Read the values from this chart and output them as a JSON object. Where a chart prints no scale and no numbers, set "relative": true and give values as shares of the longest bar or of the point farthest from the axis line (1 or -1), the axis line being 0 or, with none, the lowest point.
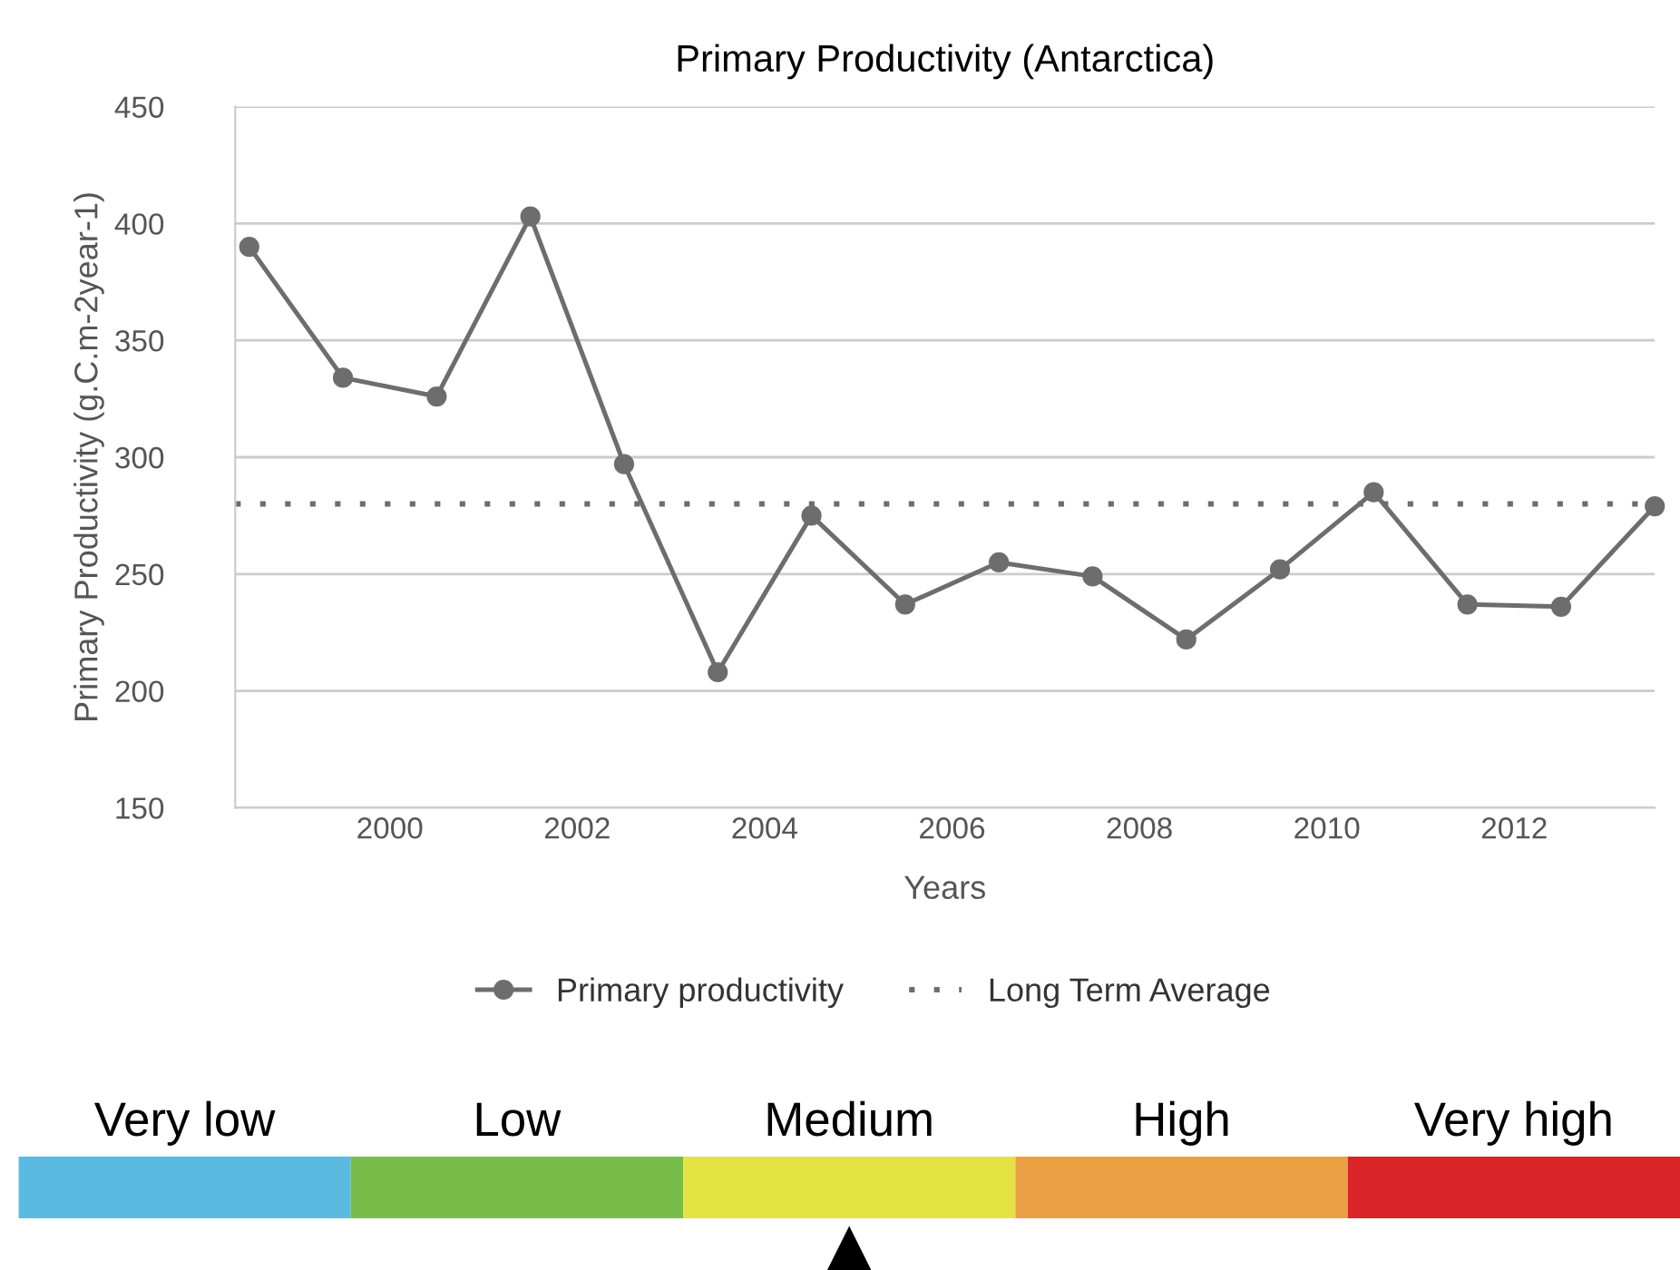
{
  "chart_data": [
    {
      "type": "line",
      "title": "Primary Productivity (Antarctica)",
      "xlabel": "Years",
      "ylabel": "Primary Productivity (g.C.m-2year-1)",
      "x": [
        1998.5,
        1999.5,
        2000.5,
        2001.5,
        2002.5,
        2003.5,
        2004.5,
        2005.5,
        2006.5,
        2007.5,
        2008.5,
        2009.5,
        2010.5,
        2011.5,
        2012.5,
        2013.5
      ],
      "series": [
        {
          "name": "Primary productivity",
          "color": "#6d6d6d",
          "values": [
            390,
            334,
            326,
            403,
            297,
            208,
            275,
            237,
            255,
            249,
            222,
            252,
            285,
            237,
            236,
            279
          ]
        }
      ],
      "ref_lines": [
        {
          "axis": "y",
          "value": 280,
          "label": "Long Term Average",
          "color": "#6d6d6d",
          "line_style": "dotted"
        }
      ],
      "xlim": [
        1998.35,
        2013.5
      ],
      "ylim": [
        150,
        450
      ],
      "xticks": [
        2000,
        2002,
        2004,
        2006,
        2008,
        2010,
        2012
      ],
      "yticks": [
        150,
        200,
        250,
        300,
        350,
        400,
        450
      ],
      "grid": "y",
      "legend": "bottom",
      "marker": "circle",
      "line_style": "solid"
    },
    {
      "type": "bar",
      "relative": true,
      "categories": [
        "Very low",
        "Low",
        "Medium",
        "High",
        "Very high"
      ],
      "values": [
        1,
        1,
        1,
        1,
        1
      ],
      "colors": [
        "#5bbadf",
        "#78bd4a",
        "#e4e344",
        "#eca044",
        "#da2528"
      ]
    }
  ]
}
